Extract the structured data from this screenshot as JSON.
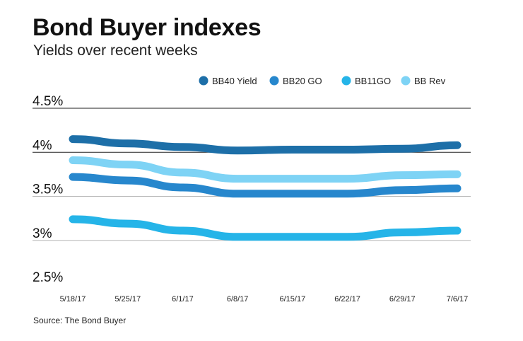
{
  "title": "Bond Buyer indexes",
  "subtitle": "Yields over recent weeks",
  "source": "Source: The Bond Buyer",
  "chart_data": {
    "type": "line",
    "title": "Bond Buyer indexes",
    "subtitle": "Yields over recent weeks",
    "xlabel": "",
    "ylabel": "",
    "categories": [
      "5/18/17",
      "5/25/17",
      "6/1/17",
      "6/8/17",
      "6/15/17",
      "6/22/17",
      "6/29/17",
      "7/6/17"
    ],
    "ylim": [
      2.5,
      4.5
    ],
    "yticks": [
      4.5,
      4,
      3.5,
      3,
      2.5
    ],
    "ytick_labels": [
      "4.5%",
      "4%",
      "3.5%",
      "3%",
      "2.5%"
    ],
    "grid": true,
    "legend_position": "top-right",
    "series": [
      {
        "name": "BB40 Yield",
        "color": "#1d6fa8",
        "values": [
          4.15,
          4.1,
          4.06,
          4.02,
          4.03,
          4.03,
          4.04,
          4.08
        ]
      },
      {
        "name": "BB20 GO",
        "color": "#2787cd",
        "values": [
          3.72,
          3.68,
          3.6,
          3.53,
          3.53,
          3.53,
          3.57,
          3.59
        ]
      },
      {
        "name": "BB11GO",
        "color": "#25b4e8",
        "values": [
          3.24,
          3.19,
          3.11,
          3.04,
          3.04,
          3.04,
          3.09,
          3.11
        ]
      },
      {
        "name": "BB Rev",
        "color": "#7ed3f5",
        "values": [
          3.91,
          3.86,
          3.77,
          3.7,
          3.7,
          3.7,
          3.74,
          3.75
        ]
      }
    ]
  }
}
